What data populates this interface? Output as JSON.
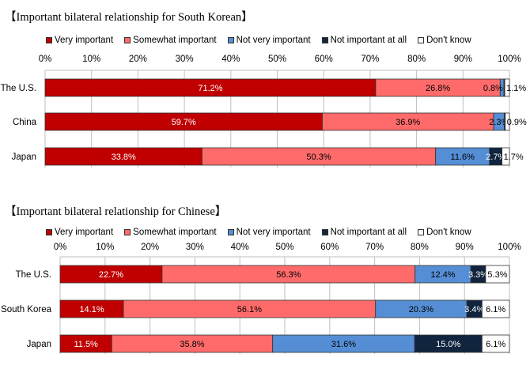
{
  "colors": {
    "very_important": "#c00000",
    "somewhat_important": "#ff6b6b",
    "not_very_important": "#558ed5",
    "not_important_at_all": "#10243e",
    "dont_know": "#ffffff"
  },
  "chart_data": [
    {
      "type": "bar",
      "orientation": "horizontal",
      "stacked": true,
      "title": "【Important bilateral relationship for South Korean】",
      "categories": [
        "The U.S.",
        "China",
        "Japan"
      ],
      "series": [
        {
          "name": "Very important",
          "values": [
            71.2,
            59.7,
            33.8
          ]
        },
        {
          "name": "Somewhat important",
          "values": [
            26.8,
            36.9,
            50.3
          ]
        },
        {
          "name": "Not very important",
          "values": [
            0.8,
            2.3,
            11.6
          ]
        },
        {
          "name": "Not important at all",
          "values": [
            0.2,
            0.2,
            2.7
          ]
        },
        {
          "name": "Don't know",
          "values": [
            1.1,
            0.9,
            1.7
          ]
        }
      ],
      "labels": [
        [
          "71.2%",
          "26.8%",
          "0.8%",
          "",
          "1.1%"
        ],
        [
          "59.7%",
          "36.9%",
          "2.3%",
          "",
          "0.9%"
        ],
        [
          "33.8%",
          "50.3%",
          "11.6%",
          "2.7%",
          "1.7%"
        ]
      ],
      "xticks": [
        "0%",
        "10%",
        "20%",
        "30%",
        "40%",
        "50%",
        "60%",
        "70%",
        "80%",
        "90%",
        "100%"
      ],
      "xlim": [
        0,
        100
      ],
      "grid": true,
      "legend": "top"
    },
    {
      "type": "bar",
      "orientation": "horizontal",
      "stacked": true,
      "title": "【Important bilateral relationship for Chinese】",
      "categories": [
        "The U.S.",
        "South Korea",
        "Japan"
      ],
      "series": [
        {
          "name": "Very important",
          "values": [
            22.7,
            14.1,
            11.5
          ]
        },
        {
          "name": "Somewhat important",
          "values": [
            56.3,
            56.1,
            35.8
          ]
        },
        {
          "name": "Not very important",
          "values": [
            12.4,
            20.3,
            31.6
          ]
        },
        {
          "name": "Not important at all",
          "values": [
            3.3,
            3.4,
            15.0
          ]
        },
        {
          "name": "Don't know",
          "values": [
            5.3,
            6.1,
            6.1
          ]
        }
      ],
      "labels": [
        [
          "22.7%",
          "56.3%",
          "12.4%",
          "3.3%",
          "5.3%"
        ],
        [
          "14.1%",
          "56.1%",
          "20.3%",
          "3.4%",
          "6.1%"
        ],
        [
          "11.5%",
          "35.8%",
          "31.6%",
          "15.0%",
          "6.1%"
        ]
      ],
      "xticks": [
        "0%",
        "10%",
        "20%",
        "30%",
        "40%",
        "50%",
        "60%",
        "70%",
        "80%",
        "90%",
        "100%"
      ],
      "xlim": [
        0,
        100
      ],
      "grid": true,
      "legend": "top"
    }
  ]
}
